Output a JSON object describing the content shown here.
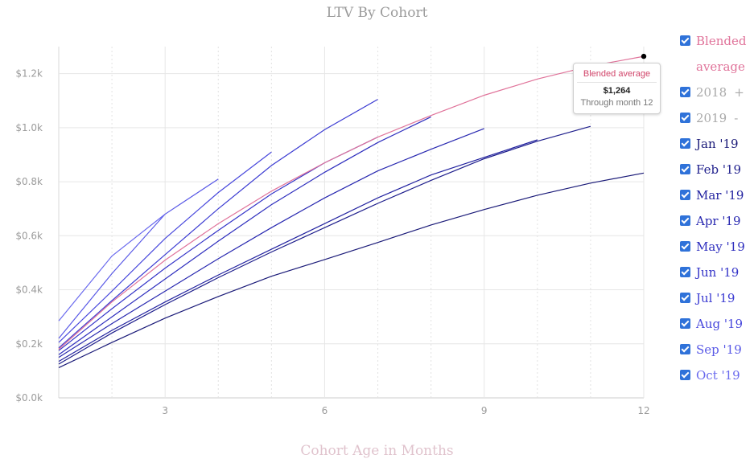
{
  "chart_data": {
    "type": "line",
    "title": "LTV By Cohort",
    "xlabel": "Cohort Age in Months",
    "ylabel": "",
    "xlim": [
      1,
      12
    ],
    "ylim": [
      0,
      1300
    ],
    "x_ticks": [
      3,
      6,
      9,
      12
    ],
    "y_ticks": [
      0,
      200,
      400,
      600,
      800,
      1000,
      1200
    ],
    "y_tick_labels": [
      "$0.0k",
      "$0.2k",
      "$0.4k",
      "$0.6k",
      "$0.8k",
      "$1.0k",
      "$1.2k"
    ],
    "grid": true,
    "legend_position": "right",
    "series": [
      {
        "name": "Blended average",
        "color": "#e0739a",
        "x": [
          1,
          2,
          3,
          4,
          5,
          6,
          7,
          8,
          9,
          10,
          11,
          12
        ],
        "values": [
          180,
          355,
          510,
          645,
          765,
          870,
          965,
          1045,
          1120,
          1180,
          1228,
          1264
        ]
      },
      {
        "name": "2018",
        "color": "#bdbdbd",
        "collapsed": true,
        "x": [],
        "values": []
      },
      {
        "name": "2019",
        "color": "#bdbdbd",
        "collapsed": false,
        "x": [],
        "values": []
      },
      {
        "name": "Jan '19",
        "color": "#1a1a78",
        "x": [
          1,
          2,
          3,
          4,
          5,
          6,
          7,
          8,
          9,
          10,
          11,
          12
        ],
        "values": [
          112,
          205,
          295,
          375,
          450,
          512,
          575,
          640,
          697,
          750,
          795,
          832
        ]
      },
      {
        "name": "Feb '19",
        "color": "#1e1e8c",
        "x": [
          1,
          2,
          3,
          4,
          5,
          6,
          7,
          8,
          9,
          10,
          11
        ],
        "values": [
          125,
          240,
          345,
          445,
          540,
          630,
          720,
          805,
          885,
          950,
          1005
        ]
      },
      {
        "name": "Mar '19",
        "color": "#2222a0",
        "x": [
          1,
          2,
          3,
          4,
          5,
          6,
          7,
          8,
          9,
          10
        ],
        "values": [
          135,
          250,
          355,
          455,
          550,
          645,
          740,
          825,
          890,
          955
        ]
      },
      {
        "name": "Apr '19",
        "color": "#2828b0",
        "x": [
          1,
          2,
          3,
          4,
          5,
          6,
          7,
          8,
          9
        ],
        "values": [
          150,
          275,
          395,
          515,
          630,
          740,
          840,
          920,
          997
        ]
      },
      {
        "name": "May '19",
        "color": "#2e2ebe",
        "x": [
          1,
          2,
          3,
          4,
          5,
          6,
          7,
          8
        ],
        "values": [
          160,
          300,
          440,
          580,
          715,
          835,
          945,
          1040
        ]
      },
      {
        "name": "Jun '19",
        "color": "#3434c8",
        "x": [
          1,
          2,
          3,
          4,
          5,
          6,
          7
        ],
        "values": [
          175,
          330,
          480,
          620,
          755,
          870,
          965
        ]
      },
      {
        "name": "Jul '19",
        "color": "#3c3cd2",
        "x": [
          1,
          2,
          3,
          4,
          5,
          6,
          7
        ],
        "values": [
          185,
          360,
          530,
          700,
          860,
          993,
          1105
        ]
      },
      {
        "name": "Aug '19",
        "color": "#4848dc",
        "x": [
          1,
          2,
          3,
          4,
          5
        ],
        "values": [
          205,
          395,
          590,
          760,
          910
        ]
      },
      {
        "name": "Sep '19",
        "color": "#5858e6",
        "x": [
          1,
          2,
          3,
          4
        ],
        "values": [
          220,
          460,
          680,
          810
        ]
      },
      {
        "name": "Oct '19",
        "color": "#6a6aee",
        "x": [
          1,
          2,
          3
        ],
        "values": [
          285,
          525,
          680
        ]
      }
    ]
  },
  "legend": {
    "items": [
      {
        "label": "Blended average",
        "color": "#e0739a",
        "checkbox_color": "#2f72d9",
        "suffix": ""
      },
      {
        "label": "2018",
        "color": "#a9a9a9",
        "checkbox_color": "#2f72d9",
        "suffix": "+"
      },
      {
        "label": "2019",
        "color": "#a9a9a9",
        "checkbox_color": "#2f72d9",
        "suffix": "-"
      },
      {
        "label": "Jan '19",
        "color": "#1a1a78",
        "checkbox_color": "#2f72d9",
        "suffix": ""
      },
      {
        "label": "Feb '19",
        "color": "#1e1e8c",
        "checkbox_color": "#2f72d9",
        "suffix": ""
      },
      {
        "label": "Mar '19",
        "color": "#2222a0",
        "checkbox_color": "#2f72d9",
        "suffix": ""
      },
      {
        "label": "Apr '19",
        "color": "#2828b0",
        "checkbox_color": "#2f72d9",
        "suffix": ""
      },
      {
        "label": "May '19",
        "color": "#2e2ebe",
        "checkbox_color": "#2f72d9",
        "suffix": ""
      },
      {
        "label": "Jun '19",
        "color": "#3434c8",
        "checkbox_color": "#2f72d9",
        "suffix": ""
      },
      {
        "label": "Jul '19",
        "color": "#3c3cd2",
        "checkbox_color": "#2f72d9",
        "suffix": ""
      },
      {
        "label": "Aug '19",
        "color": "#4848dc",
        "checkbox_color": "#2f72d9",
        "suffix": ""
      },
      {
        "label": "Sep '19",
        "color": "#5858e6",
        "checkbox_color": "#2f72d9",
        "suffix": ""
      },
      {
        "label": "Oct '19",
        "color": "#6a6aee",
        "checkbox_color": "#2f72d9",
        "suffix": ""
      }
    ]
  },
  "tooltip": {
    "title": "Blended average",
    "value": "$1,264",
    "subtitle": "Through month 12"
  },
  "colors": {
    "grid": "#e6e6e6",
    "axis_label": "#9b9b9b",
    "highlight_point": "#000000"
  }
}
